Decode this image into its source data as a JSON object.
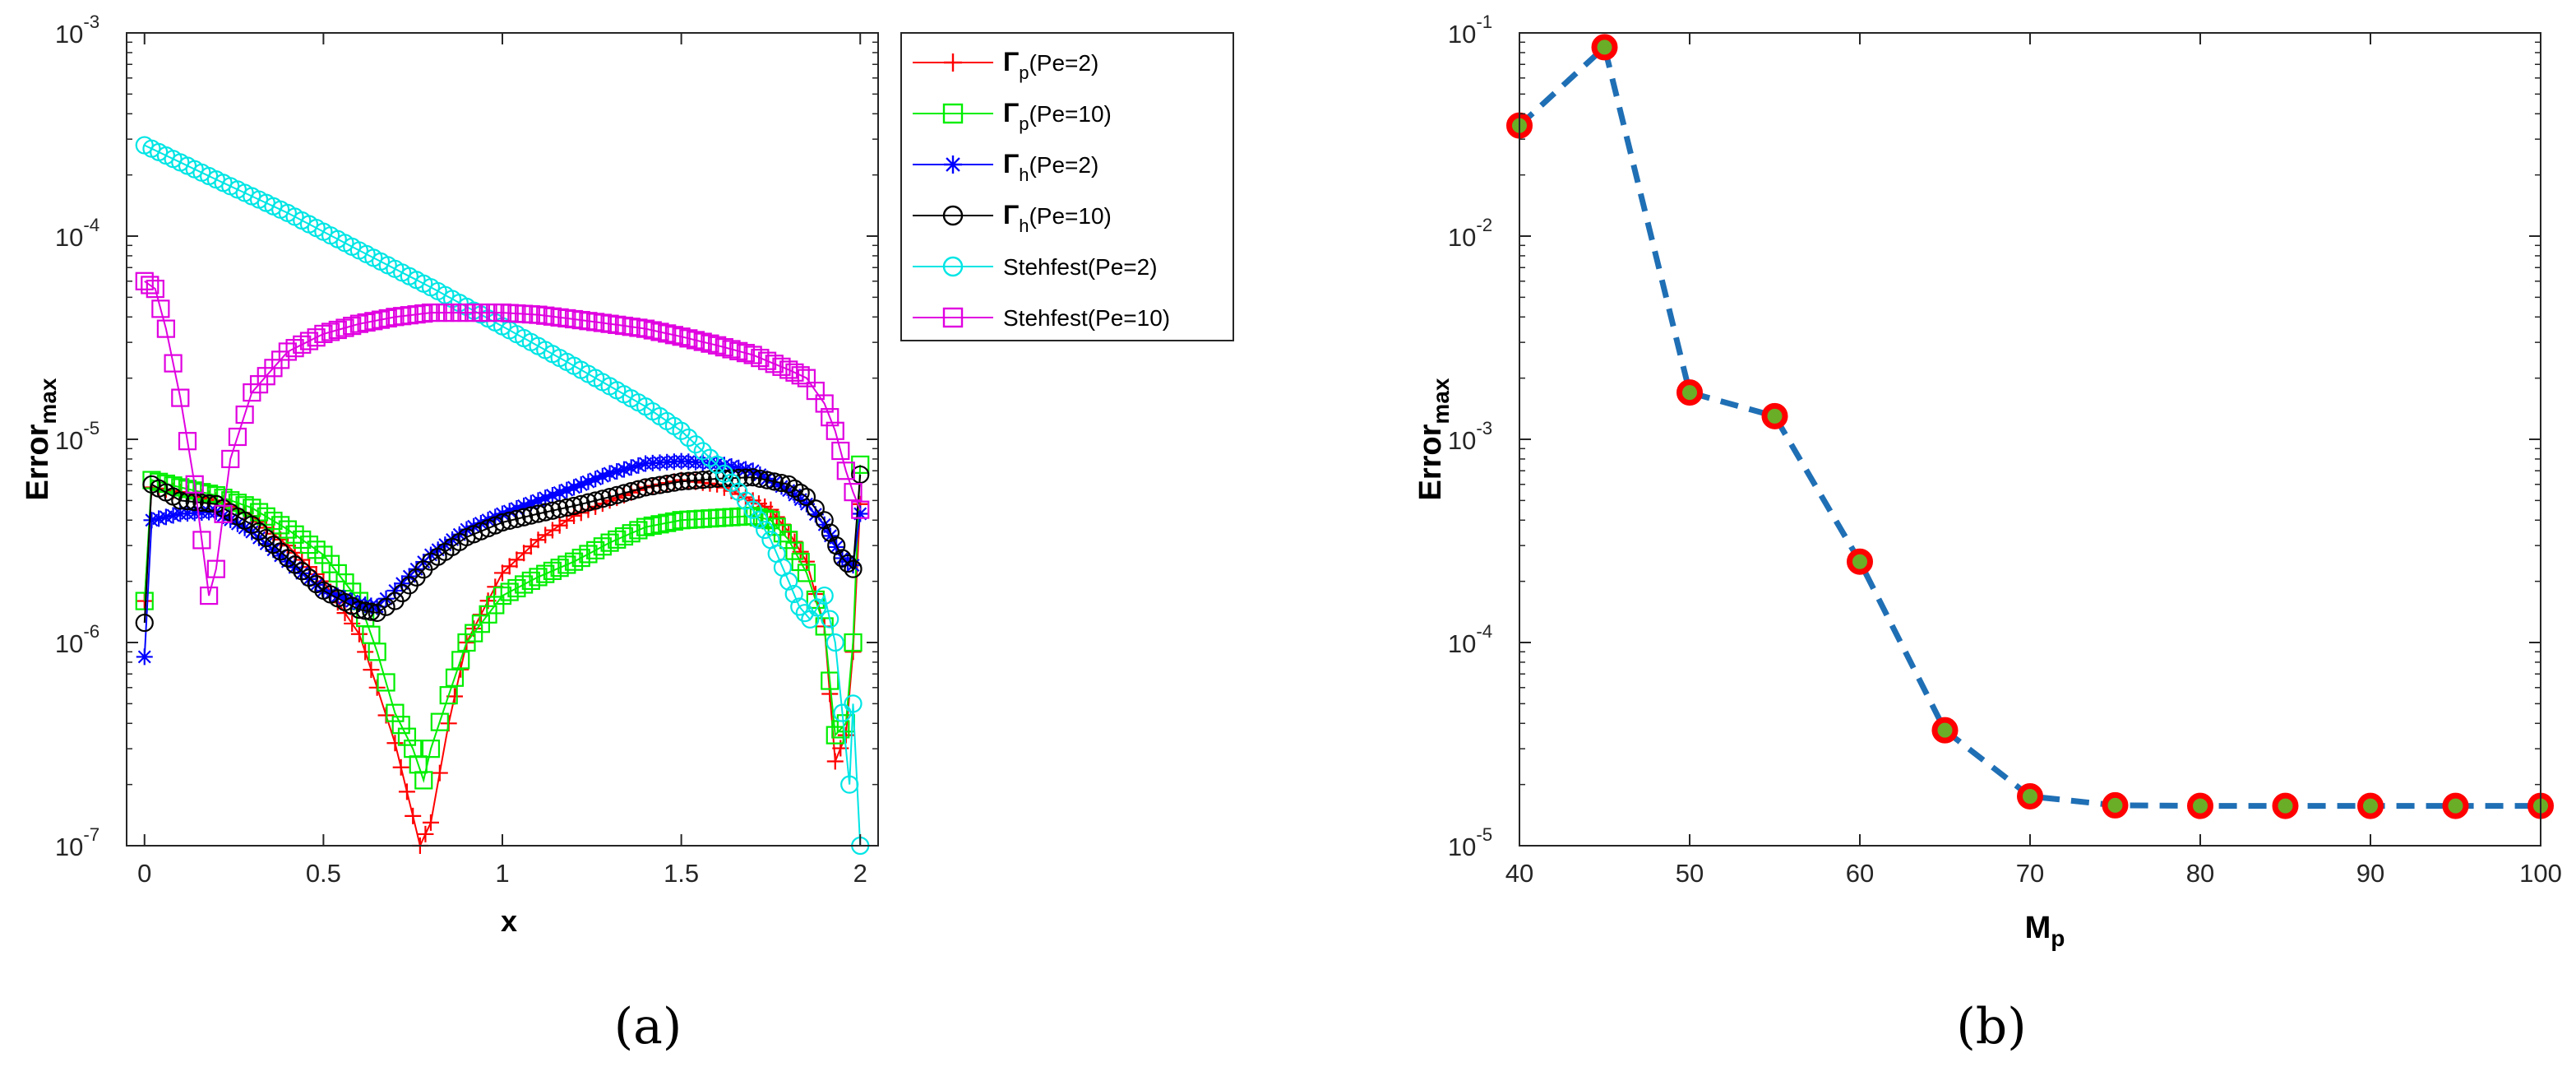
{
  "chart_data": [
    {
      "panel": "(a)",
      "type": "line",
      "xlabel": "x",
      "ylabel": "Error",
      "ylabel_sub": "max",
      "xlim": [
        -0.05,
        2.05
      ],
      "ylim": [
        1e-07,
        0.001
      ],
      "yscale": "log",
      "xticks": [
        0,
        0.5,
        1,
        1.5,
        2
      ],
      "xtick_labels": [
        "0",
        "0.5",
        "1",
        "1.5",
        "2"
      ],
      "yticks": [
        1e-07,
        1e-06,
        1e-05,
        0.0001,
        0.001
      ],
      "ytick_base": "10",
      "ytick_exponents": [
        "-7",
        "-6",
        "-5",
        "-4",
        "-3"
      ],
      "grid": false,
      "legend_position": "outside-right",
      "series": [
        {
          "name_main": "Γ",
          "name_sub": "p",
          "name_rest": "(Pe=2)",
          "color": "#ff0000",
          "marker": "plus",
          "x": [
            0,
            0.02,
            0.1,
            0.2,
            0.3,
            0.4,
            0.5,
            0.6,
            0.65,
            0.7,
            0.75,
            0.77,
            0.8,
            0.85,
            0.9,
            1.0,
            1.1,
            1.2,
            1.3,
            1.4,
            1.5,
            1.6,
            1.7,
            1.75,
            1.8,
            1.85,
            1.9,
            1.93,
            1.96,
            1.98,
            2.0
          ],
          "y": [
            1.6e-06,
            5.8e-06,
            5.5e-06,
            5e-06,
            4.2e-06,
            3e-06,
            2e-06,
            1.1e-06,
            6e-07,
            3.2e-07,
            1.4e-07,
            1e-07,
            1.3e-07,
            4e-07,
            1e-06,
            2.2e-06,
            3.2e-06,
            4.2e-06,
            5e-06,
            5.8e-06,
            6.3e-06,
            6e-06,
            5e-06,
            4.5e-06,
            3.5e-06,
            2.5e-06,
            1.2e-06,
            2.6e-07,
            3.5e-07,
            9e-07,
            4.8e-06
          ]
        },
        {
          "name_main": "Γ",
          "name_sub": "p",
          "name_rest": "(Pe=10)",
          "color": "#00ee00",
          "marker": "square",
          "x": [
            0,
            0.02,
            0.1,
            0.2,
            0.3,
            0.4,
            0.5,
            0.6,
            0.65,
            0.7,
            0.75,
            0.78,
            0.8,
            0.85,
            0.9,
            1.0,
            1.1,
            1.2,
            1.3,
            1.4,
            1.5,
            1.6,
            1.7,
            1.75,
            1.8,
            1.85,
            1.9,
            1.93,
            1.96,
            1.98,
            2.0
          ],
          "y": [
            1.6e-06,
            6.3e-06,
            5.8e-06,
            5.3e-06,
            4.6e-06,
            3.6e-06,
            2.7e-06,
            1.6e-06,
            9e-07,
            4.5e-07,
            3e-07,
            2.1e-07,
            3e-07,
            5.5e-07,
            1e-06,
            1.7e-06,
            2.1e-06,
            2.5e-06,
            3.1e-06,
            3.7e-06,
            4e-06,
            4.1e-06,
            4.2e-06,
            4e-06,
            3.2e-06,
            2.2e-06,
            1.2e-06,
            3.5e-07,
            4e-07,
            1e-06,
            7.5e-06
          ]
        },
        {
          "name_main": "Γ",
          "name_sub": "h",
          "name_rest": "(Pe=2)",
          "color": "#0000ff",
          "marker": "asterisk",
          "x": [
            0,
            0.02,
            0.1,
            0.2,
            0.3,
            0.4,
            0.5,
            0.6,
            0.65,
            0.7,
            0.8,
            0.9,
            1.0,
            1.1,
            1.2,
            1.3,
            1.4,
            1.5,
            1.6,
            1.7,
            1.8,
            1.85,
            1.9,
            1.95,
            1.98,
            2.0
          ],
          "y": [
            8.5e-07,
            4e-06,
            4.3e-06,
            4.4e-06,
            3.5e-06,
            2.5e-06,
            1.8e-06,
            1.55e-06,
            1.5e-06,
            1.8e-06,
            2.7e-06,
            3.6e-06,
            4.3e-06,
            5e-06,
            5.8e-06,
            6.8e-06,
            7.6e-06,
            7.8e-06,
            7.6e-06,
            7e-06,
            5.6e-06,
            4.8e-06,
            3.8e-06,
            2.6e-06,
            2.4e-06,
            4.3e-06
          ]
        },
        {
          "name_main": "Γ",
          "name_sub": "h",
          "name_rest": "(Pe=10)",
          "color": "#000000",
          "marker": "circle",
          "x": [
            0,
            0.02,
            0.1,
            0.2,
            0.3,
            0.4,
            0.5,
            0.6,
            0.65,
            0.7,
            0.8,
            0.9,
            1.0,
            1.1,
            1.2,
            1.3,
            1.4,
            1.5,
            1.6,
            1.7,
            1.8,
            1.85,
            1.9,
            1.95,
            1.98,
            2.0
          ],
          "y": [
            1.25e-06,
            6e-06,
            5e-06,
            4.8e-06,
            3.8e-06,
            2.6e-06,
            1.8e-06,
            1.45e-06,
            1.4e-06,
            1.6e-06,
            2.5e-06,
            3.3e-06,
            3.9e-06,
            4.3e-06,
            4.7e-06,
            5.2e-06,
            5.8e-06,
            6.2e-06,
            6.4e-06,
            6.5e-06,
            6e-06,
            5.2e-06,
            4e-06,
            2.6e-06,
            2.3e-06,
            6.7e-06
          ]
        },
        {
          "name_main": "Stehfest",
          "name_sub": "",
          "name_rest": "(Pe=2)",
          "color": "#00e5e5",
          "marker": "circle",
          "x": [
            0,
            0.2,
            0.4,
            0.6,
            0.8,
            1.0,
            1.2,
            1.4,
            1.5,
            1.6,
            1.7,
            1.75,
            1.8,
            1.83,
            1.86,
            1.9,
            1.93,
            1.95,
            1.97,
            1.98,
            2.0
          ],
          "y": [
            0.00028,
            0.00019,
            0.00013,
            8.5e-05,
            5.6e-05,
            3.6e-05,
            2.3e-05,
            1.45e-05,
            1.1e-05,
            7.5e-06,
            4.5e-06,
            3.2e-06,
            2e-06,
            1.5e-06,
            1.3e-06,
            1.7e-06,
            1e-06,
            4.5e-07,
            2e-07,
            5e-07,
            1e-07
          ]
        },
        {
          "name_main": "Stehfest",
          "name_sub": "",
          "name_rest": "(Pe=10)",
          "color": "#e000e0",
          "marker": "square",
          "x": [
            0,
            0.03,
            0.06,
            0.1,
            0.14,
            0.18,
            0.2,
            0.24,
            0.3,
            0.4,
            0.5,
            0.6,
            0.7,
            0.8,
            0.9,
            1.0,
            1.1,
            1.2,
            1.3,
            1.4,
            1.5,
            1.6,
            1.7,
            1.8,
            1.85,
            1.9,
            1.93,
            1.96,
            1.98,
            2.0
          ],
          "y": [
            6e-05,
            5.5e-05,
            3.5e-05,
            1.6e-05,
            6e-06,
            1.7e-06,
            2.3e-06,
            8e-06,
            1.7e-05,
            2.7e-05,
            3.3e-05,
            3.7e-05,
            4e-05,
            4.2e-05,
            4.2e-05,
            4.2e-05,
            4.1e-05,
            3.9e-05,
            3.7e-05,
            3.5e-05,
            3.2e-05,
            2.9e-05,
            2.6e-05,
            2.2e-05,
            2e-05,
            1.5e-05,
            1.1e-05,
            7e-06,
            5.5e-06,
            4.5e-06
          ]
        }
      ]
    },
    {
      "panel": "(b)",
      "type": "line",
      "xlabel_main": "M",
      "xlabel_sub": "p",
      "ylabel": "Error",
      "ylabel_sub": "max",
      "xlim": [
        40,
        100
      ],
      "ylim": [
        1e-05,
        0.1
      ],
      "yscale": "log",
      "xticks": [
        40,
        50,
        60,
        70,
        80,
        90,
        100
      ],
      "xtick_labels": [
        "40",
        "50",
        "60",
        "70",
        "80",
        "90",
        "100"
      ],
      "yticks": [
        1e-05,
        0.0001,
        0.001,
        0.01,
        0.1
      ],
      "ytick_base": "10",
      "ytick_exponents": [
        "-5",
        "-4",
        "-3",
        "-2",
        "-1"
      ],
      "grid": false,
      "line_color": "#1f6fb5",
      "marker_edge_color": "#ff0000",
      "marker_fill_color": "#6aae27",
      "x": [
        40,
        45,
        50,
        55,
        60,
        65,
        70,
        75,
        80,
        85,
        90,
        95,
        100
      ],
      "y": [
        0.035,
        0.085,
        0.0017,
        0.0013,
        0.00025,
        3.7e-05,
        1.75e-05,
        1.58e-05,
        1.57e-05,
        1.57e-05,
        1.57e-05,
        1.57e-05,
        1.57e-05
      ]
    }
  ]
}
